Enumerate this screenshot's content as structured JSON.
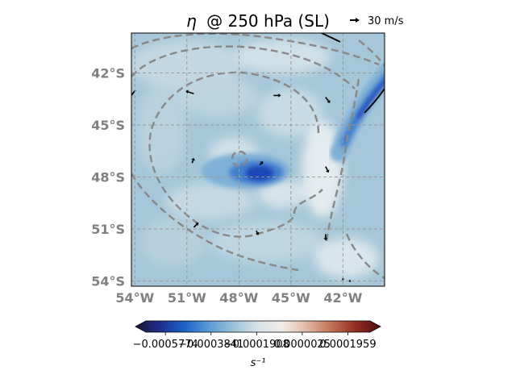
{
  "chart_data": {
    "type": "heatmap",
    "title_symbol": "η",
    "title_rest": "@ 250 hPa (SL)",
    "reference_vector_label": "30 m/s",
    "x_tick_labels": [
      "54°W",
      "51°W",
      "48°W",
      "45°W",
      "42°W"
    ],
    "x_tick_values": [
      -54,
      -51,
      -48,
      -45,
      -42
    ],
    "y_tick_labels": [
      "42°S",
      "45°S",
      "48°S",
      "51°S",
      "54°S"
    ],
    "y_tick_values": [
      -42,
      -45,
      -48,
      -51,
      -54
    ],
    "lon_range": [
      -54.2,
      -39.6
    ],
    "lat_range": [
      -54.3,
      -39.7
    ],
    "colorbar": {
      "ticks": [
        "−0.0005774",
        "−0.0003841",
        "−0.0001908",
        "0.0000025",
        "0.0001959"
      ],
      "tick_values": [
        -0.0005774,
        -0.0003841,
        -0.0001908,
        2.5e-06,
        0.0001959
      ],
      "range": [
        -0.00066,
        0.00029
      ],
      "label": "s⁻¹",
      "colors": [
        "#1a1433",
        "#1f2e8c",
        "#1c63c9",
        "#5a9ad4",
        "#9dc2d9",
        "#d6e2e8",
        "#f3ece7",
        "#e0b7a2",
        "#c07156",
        "#932c23",
        "#4e0b0b"
      ]
    },
    "features": [
      {
        "name": "vorticity-minimum",
        "lon": -46.7,
        "lat": -47.9,
        "value": -0.00045
      },
      {
        "name": "jet-band",
        "lon": -41.3,
        "lat": -45.4,
        "value": -0.0004
      }
    ],
    "wind_vectors": [
      {
        "lon": -50.6,
        "lat": -43.2,
        "u": -6,
        "v": 2
      },
      {
        "lon": -46.0,
        "lat": -43.3,
        "u": 5,
        "v": 0
      },
      {
        "lon": -43.0,
        "lat": -43.4,
        "u": 3,
        "v": -4
      },
      {
        "lon": -50.7,
        "lat": -47.2,
        "u": 1,
        "v": 3
      },
      {
        "lon": -46.8,
        "lat": -47.3,
        "u": 1,
        "v": 1
      },
      {
        "lon": -43.0,
        "lat": -47.4,
        "u": 2,
        "v": -4
      },
      {
        "lon": -50.6,
        "lat": -50.9,
        "u": 3,
        "v": 3
      },
      {
        "lon": -47.0,
        "lat": -51.1,
        "u": 1,
        "v": -2
      },
      {
        "lon": -43.0,
        "lat": -51.3,
        "u": 0,
        "v": -4
      },
      {
        "lon": -42.0,
        "lat": -53.9,
        "u": 0,
        "v": 0
      },
      {
        "lon": -41.6,
        "lat": -54.0,
        "u": 0,
        "v": 0
      }
    ]
  }
}
